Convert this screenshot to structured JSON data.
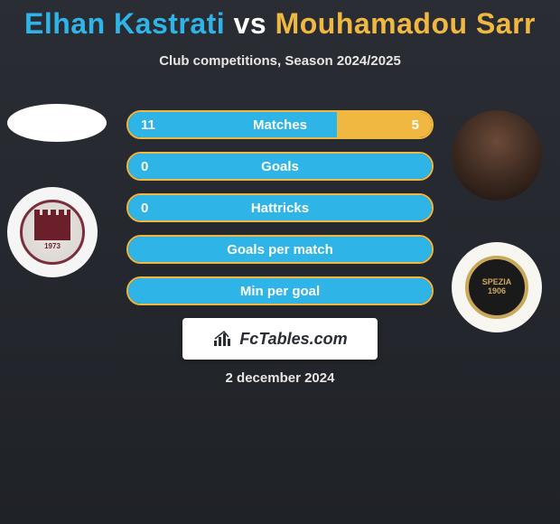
{
  "title": {
    "player1": "Elhan Kastrati",
    "vs": "vs",
    "player2": "Mouhamadou Sarr"
  },
  "subtitle": "Club competitions, Season 2024/2025",
  "colors": {
    "player1": "#2fb4e8",
    "player2": "#f0b840",
    "bg_top": "#2a2d34",
    "bg_bottom": "#1f2227",
    "text": "#e8e6e2"
  },
  "club1": {
    "year": "1973"
  },
  "club2": {
    "name": "SPEZIA",
    "year": "1906"
  },
  "bars": [
    {
      "label": "Matches",
      "left": "11",
      "right": "5",
      "left_pct": 68.75,
      "right_pct": 31.25
    },
    {
      "label": "Goals",
      "left": "0",
      "right": "",
      "left_pct": 100,
      "right_pct": 0
    },
    {
      "label": "Hattricks",
      "left": "0",
      "right": "",
      "left_pct": 100,
      "right_pct": 0
    },
    {
      "label": "Goals per match",
      "left": "",
      "right": "",
      "left_pct": 100,
      "right_pct": 0
    },
    {
      "label": "Min per goal",
      "left": "",
      "right": "",
      "left_pct": 100,
      "right_pct": 0
    }
  ],
  "watermark": "FcTables.com",
  "date": "2 december 2024"
}
